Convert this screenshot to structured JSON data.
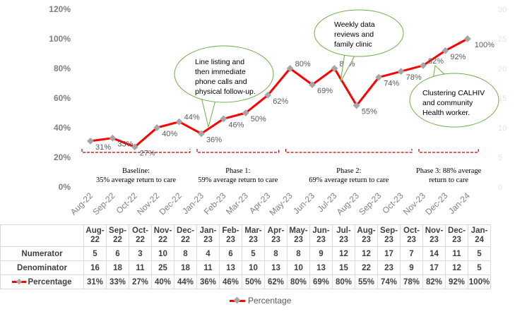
{
  "chart_data": {
    "type": "line",
    "categories": [
      "Aug-22",
      "Sep-22",
      "Oct-22",
      "Nov-22",
      "Dec-22",
      "Jan-23",
      "Feb-23",
      "Mar-23",
      "Apr-23",
      "May-23",
      "Jun-23",
      "Jul-23",
      "Aug-23",
      "Sep-23",
      "Oct-23",
      "Nov-23",
      "Dec-23",
      "Jan-24"
    ],
    "table_headers": [
      [
        "Aug-",
        "22"
      ],
      [
        "Sep-",
        "22"
      ],
      [
        "Oct-",
        "22"
      ],
      [
        "Nov-",
        "22"
      ],
      [
        "Dec-",
        "22"
      ],
      [
        "Jan-",
        "23"
      ],
      [
        "Feb-",
        "23"
      ],
      [
        "Mar-",
        "23"
      ],
      [
        "Apr-",
        "23"
      ],
      [
        "May-",
        "23"
      ],
      [
        "Jun-",
        "23"
      ],
      [
        "Jul-23",
        ""
      ],
      [
        "Aug-",
        "23"
      ],
      [
        "Sep-",
        "23"
      ],
      [
        "Oct-",
        "23"
      ],
      [
        "Nov-",
        "23"
      ],
      [
        "Dec-",
        "23"
      ],
      [
        "Jan-",
        "24"
      ]
    ],
    "series": [
      {
        "name": "Percentage",
        "values": [
          31,
          33,
          27,
          40,
          44,
          36,
          46,
          50,
          62,
          80,
          69,
          80,
          55,
          74,
          78,
          82,
          92,
          100
        ],
        "labels": [
          "31%",
          "33%",
          "27%",
          "40%",
          "44%",
          "36%",
          "46%",
          "50%",
          "62%",
          "80%",
          "69%",
          "80%",
          "55%",
          "74%",
          "78%",
          "82%",
          "92%",
          "100%"
        ]
      }
    ],
    "table_rows": [
      {
        "label": "Numerator",
        "values": [
          "5",
          "6",
          "3",
          "10",
          "8",
          "4",
          "6",
          "5",
          "8",
          "8",
          "9",
          "12",
          "12",
          "17",
          "7",
          "14",
          "11",
          "5"
        ]
      },
      {
        "label": "Denominator",
        "values": [
          "16",
          "18",
          "11",
          "25",
          "18",
          "11",
          "13",
          "10",
          "13",
          "10",
          "13",
          "15",
          "22",
          "23",
          "9",
          "17",
          "12",
          "5"
        ]
      },
      {
        "label": "Percentage",
        "values": [
          "31%",
          "33%",
          "27%",
          "40%",
          "44%",
          "36%",
          "46%",
          "50%",
          "62%",
          "80%",
          "69%",
          "80%",
          "55%",
          "74%",
          "78%",
          "82%",
          "92%",
          "100%"
        ]
      }
    ],
    "y_ticks": [
      "0%",
      "20%",
      "40%",
      "60%",
      "80%",
      "100%",
      "120%"
    ],
    "ylim": [
      0,
      120
    ],
    "y2_ticks": [
      "0",
      "5",
      "10",
      "15",
      "20",
      "25",
      "30"
    ],
    "y2lim": [
      0,
      30
    ],
    "phases": [
      {
        "line1": "Baseline:",
        "line2": "35% average return to care"
      },
      {
        "line1": "Phase 1:",
        "line2": "59% average return to care"
      },
      {
        "line1": "Phase 2:",
        "line2": "69% average return to care"
      },
      {
        "line1": "Phase 3: 88% average",
        "line2": "return to care"
      }
    ],
    "callouts": [
      {
        "lines": [
          "Line listing and",
          "then immediate",
          "phone calls and",
          "physical follow-up."
        ]
      },
      {
        "lines": [
          "Weekly data",
          "reviews and",
          "family clinic"
        ]
      },
      {
        "lines": [
          "Clustering CALHIV",
          "and community",
          "Health worker."
        ]
      }
    ],
    "legend": "Percentage",
    "colors": {
      "line": "#ff0000",
      "marker": "#a6a6a6",
      "bracket": "#c00000",
      "callout_fill": "#ffffff",
      "callout_border": "#70ad47"
    }
  }
}
